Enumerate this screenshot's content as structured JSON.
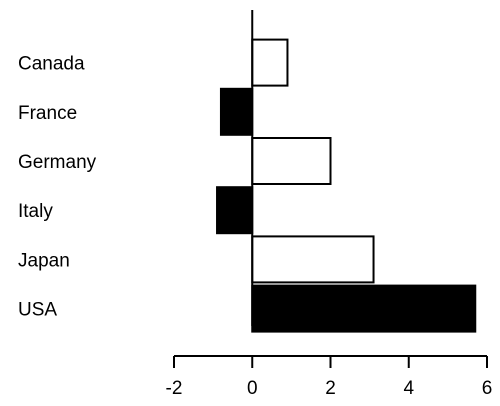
{
  "chart_data": {
    "type": "bar",
    "orientation": "horizontal",
    "title": "",
    "xlabel": "",
    "ylabel": "",
    "categories": [
      "Canada",
      "France",
      "Germany",
      "Italy",
      "Japan",
      "USA"
    ],
    "values": [
      0.9,
      -0.8,
      2.0,
      -0.9,
      3.1,
      5.7
    ],
    "fills": [
      "white",
      "black",
      "white",
      "black",
      "white",
      "black"
    ],
    "xlim": [
      -2,
      6
    ],
    "xticks": [
      -2,
      0,
      2,
      4,
      6
    ],
    "xtick_labels": [
      "-2",
      "0",
      "2",
      "4",
      "6"
    ],
    "grid": false,
    "legend": "none",
    "colors": {
      "bar_stroke": "#000000",
      "bar_dark": "#000000",
      "bar_light": "#ffffff",
      "axis": "#000000"
    }
  }
}
